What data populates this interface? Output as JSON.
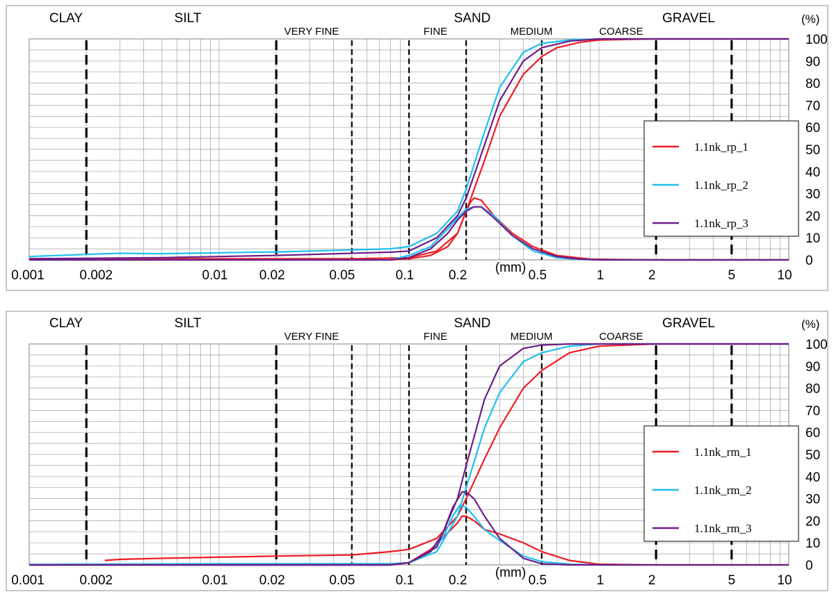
{
  "chart_data": [
    {
      "type": "line",
      "xscale": "log",
      "xlim": [
        0.001,
        10
      ],
      "ylim": [
        0,
        100
      ],
      "ylabel": "(%)",
      "xlabel": "(mm)",
      "grid": true,
      "legend_position": "right",
      "x_ticks": [
        "0.001",
        "0.002",
        "0.01",
        "0.02",
        "0.05",
        "0.1",
        "0.2",
        "0.5",
        "1",
        "2",
        "5",
        "10"
      ],
      "y_ticks": [
        "0",
        "10",
        "20",
        "30",
        "40",
        "50",
        "60",
        "70",
        "80",
        "90",
        "100"
      ],
      "class_labels": [
        "CLAY",
        "SILT",
        "SAND",
        "GRAVEL",
        "VERY FINE",
        "FINE",
        "MEDIUM",
        "COARSE"
      ],
      "boundaries_mm": [
        0.002,
        0.02,
        0.05,
        0.1,
        0.2,
        0.5,
        2,
        5
      ],
      "series": [
        {
          "name": "1.1nk_rp_1",
          "color": "#ee1c24",
          "cumulative": [
            [
              0.001,
              0.5
            ],
            [
              0.01,
              0.5
            ],
            [
              0.05,
              0.5
            ],
            [
              0.1,
              1
            ],
            [
              0.14,
              4
            ],
            [
              0.18,
              12
            ],
            [
              0.2,
              22
            ],
            [
              0.25,
              45
            ],
            [
              0.3,
              65
            ],
            [
              0.4,
              84
            ],
            [
              0.5,
              92
            ],
            [
              0.6,
              96
            ],
            [
              0.8,
              98.5
            ],
            [
              1,
              99.5
            ],
            [
              2,
              100
            ],
            [
              10,
              100
            ]
          ],
          "frequency": [
            [
              0.001,
              0
            ],
            [
              0.08,
              0
            ],
            [
              0.1,
              0.5
            ],
            [
              0.13,
              2
            ],
            [
              0.16,
              6
            ],
            [
              0.18,
              12
            ],
            [
              0.2,
              22
            ],
            [
              0.21,
              26
            ],
            [
              0.22,
              28
            ],
            [
              0.24,
              27
            ],
            [
              0.28,
              20
            ],
            [
              0.35,
              12
            ],
            [
              0.45,
              6
            ],
            [
              0.6,
              2
            ],
            [
              0.9,
              0.3
            ],
            [
              2,
              0
            ],
            [
              10,
              0
            ]
          ]
        },
        {
          "name": "1.1nk_rp_2",
          "color": "#1ebfef",
          "cumulative": [
            [
              0.001,
              1.5
            ],
            [
              0.002,
              2.5
            ],
            [
              0.003,
              3
            ],
            [
              0.005,
              2.8
            ],
            [
              0.01,
              3.2
            ],
            [
              0.02,
              3.6
            ],
            [
              0.05,
              4.5
            ],
            [
              0.08,
              5
            ],
            [
              0.1,
              6
            ],
            [
              0.14,
              12
            ],
            [
              0.18,
              22
            ],
            [
              0.2,
              32
            ],
            [
              0.25,
              58
            ],
            [
              0.3,
              78
            ],
            [
              0.4,
              94
            ],
            [
              0.5,
              98
            ],
            [
              0.7,
              99.5
            ],
            [
              1,
              100
            ],
            [
              10,
              100
            ]
          ],
          "frequency": [
            [
              0.001,
              0
            ],
            [
              0.08,
              0
            ],
            [
              0.1,
              2
            ],
            [
              0.13,
              6
            ],
            [
              0.16,
              14
            ],
            [
              0.18,
              19
            ],
            [
              0.2,
              23
            ],
            [
              0.22,
              24
            ],
            [
              0.24,
              24
            ],
            [
              0.28,
              20
            ],
            [
              0.35,
              11
            ],
            [
              0.45,
              4
            ],
            [
              0.6,
              1
            ],
            [
              0.8,
              0.2
            ],
            [
              1,
              0
            ],
            [
              10,
              0
            ]
          ]
        },
        {
          "name": "1.1nk_rp_3",
          "color": "#6c1d87",
          "cumulative": [
            [
              0.001,
              0.5
            ],
            [
              0.005,
              1
            ],
            [
              0.01,
              1.5
            ],
            [
              0.02,
              2
            ],
            [
              0.05,
              3
            ],
            [
              0.08,
              3.5
            ],
            [
              0.1,
              4
            ],
            [
              0.14,
              10
            ],
            [
              0.18,
              20
            ],
            [
              0.2,
              28
            ],
            [
              0.25,
              52
            ],
            [
              0.3,
              72
            ],
            [
              0.4,
              90
            ],
            [
              0.5,
              96
            ],
            [
              0.7,
              99
            ],
            [
              1,
              100
            ],
            [
              10,
              100
            ]
          ],
          "frequency": [
            [
              0.001,
              0
            ],
            [
              0.08,
              0
            ],
            [
              0.1,
              1
            ],
            [
              0.13,
              5
            ],
            [
              0.16,
              12
            ],
            [
              0.18,
              18
            ],
            [
              0.2,
              22
            ],
            [
              0.22,
              24
            ],
            [
              0.24,
              24
            ],
            [
              0.28,
              19
            ],
            [
              0.35,
              11
            ],
            [
              0.45,
              5
            ],
            [
              0.6,
              1.5
            ],
            [
              0.8,
              0.3
            ],
            [
              1,
              0
            ],
            [
              10,
              0
            ]
          ]
        }
      ]
    },
    {
      "type": "line",
      "xscale": "log",
      "xlim": [
        0.001,
        10
      ],
      "ylim": [
        0,
        100
      ],
      "ylabel": "(%)",
      "xlabel": "(mm)",
      "grid": true,
      "legend_position": "right",
      "x_ticks": [
        "0.001",
        "0.002",
        "0.01",
        "0.02",
        "0.05",
        "0.1",
        "0.2",
        "0.5",
        "1",
        "2",
        "5",
        "10"
      ],
      "y_ticks": [
        "0",
        "10",
        "20",
        "30",
        "40",
        "50",
        "60",
        "70",
        "80",
        "90",
        "100"
      ],
      "class_labels": [
        "CLAY",
        "SILT",
        "SAND",
        "GRAVEL",
        "VERY FINE",
        "FINE",
        "MEDIUM",
        "COARSE"
      ],
      "boundaries_mm": [
        0.002,
        0.02,
        0.05,
        0.1,
        0.2,
        0.5,
        2,
        5
      ],
      "series": [
        {
          "name": "1.1nk_rm_1",
          "color": "#ee1c24",
          "cumulative": [
            [
              0.0025,
              2
            ],
            [
              0.003,
              2.5
            ],
            [
              0.005,
              3
            ],
            [
              0.01,
              3.5
            ],
            [
              0.02,
              4
            ],
            [
              0.05,
              4.5
            ],
            [
              0.08,
              6
            ],
            [
              0.1,
              7
            ],
            [
              0.14,
              12
            ],
            [
              0.18,
              22
            ],
            [
              0.2,
              30
            ],
            [
              0.25,
              48
            ],
            [
              0.3,
              62
            ],
            [
              0.4,
              80
            ],
            [
              0.5,
              88
            ],
            [
              0.7,
              96
            ],
            [
              1,
              99
            ],
            [
              2,
              100
            ],
            [
              10,
              100
            ]
          ],
          "frequency": [
            [
              0.001,
              0
            ],
            [
              0.08,
              0
            ],
            [
              0.1,
              1
            ],
            [
              0.13,
              7
            ],
            [
              0.15,
              12
            ],
            [
              0.18,
              19
            ],
            [
              0.19,
              22
            ],
            [
              0.2,
              22
            ],
            [
              0.22,
              20
            ],
            [
              0.25,
              16
            ],
            [
              0.3,
              14
            ],
            [
              0.4,
              10
            ],
            [
              0.5,
              6
            ],
            [
              0.7,
              2
            ],
            [
              1,
              0.3
            ],
            [
              2,
              0
            ],
            [
              10,
              0
            ]
          ]
        },
        {
          "name": "1.1nk_rm_2",
          "color": "#1ebfef",
          "cumulative": [
            [
              0.001,
              0.2
            ],
            [
              0.002,
              0.3
            ],
            [
              0.01,
              0.5
            ],
            [
              0.05,
              0.5
            ],
            [
              0.08,
              0.5
            ],
            [
              0.1,
              1
            ],
            [
              0.14,
              6
            ],
            [
              0.18,
              22
            ],
            [
              0.2,
              35
            ],
            [
              0.25,
              62
            ],
            [
              0.3,
              78
            ],
            [
              0.4,
              92
            ],
            [
              0.5,
              96
            ],
            [
              0.7,
              99
            ],
            [
              1,
              100
            ],
            [
              10,
              100
            ]
          ],
          "frequency": [
            [
              0.001,
              0
            ],
            [
              0.08,
              0
            ],
            [
              0.1,
              1
            ],
            [
              0.13,
              6
            ],
            [
              0.15,
              12
            ],
            [
              0.17,
              22
            ],
            [
              0.185,
              27
            ],
            [
              0.2,
              26
            ],
            [
              0.22,
              22
            ],
            [
              0.25,
              16
            ],
            [
              0.3,
              11
            ],
            [
              0.4,
              4
            ],
            [
              0.5,
              1.5
            ],
            [
              0.7,
              0.3
            ],
            [
              1,
              0
            ],
            [
              10,
              0
            ]
          ]
        },
        {
          "name": "1.1nk_rm_3",
          "color": "#6c1d87",
          "cumulative": [
            [
              0.001,
              0
            ],
            [
              0.05,
              0
            ],
            [
              0.08,
              0
            ],
            [
              0.1,
              1
            ],
            [
              0.14,
              8
            ],
            [
              0.18,
              30
            ],
            [
              0.2,
              45
            ],
            [
              0.25,
              75
            ],
            [
              0.3,
              90
            ],
            [
              0.4,
              98
            ],
            [
              0.5,
              99.5
            ],
            [
              0.7,
              100
            ],
            [
              10,
              100
            ]
          ],
          "frequency": [
            [
              0.001,
              0
            ],
            [
              0.08,
              0
            ],
            [
              0.1,
              1
            ],
            [
              0.13,
              6
            ],
            [
              0.15,
              14
            ],
            [
              0.17,
              26
            ],
            [
              0.19,
              33
            ],
            [
              0.2,
              33
            ],
            [
              0.22,
              30
            ],
            [
              0.25,
              22
            ],
            [
              0.3,
              12
            ],
            [
              0.4,
              3
            ],
            [
              0.5,
              0.5
            ],
            [
              0.7,
              0
            ],
            [
              10,
              0
            ]
          ]
        }
      ]
    }
  ]
}
